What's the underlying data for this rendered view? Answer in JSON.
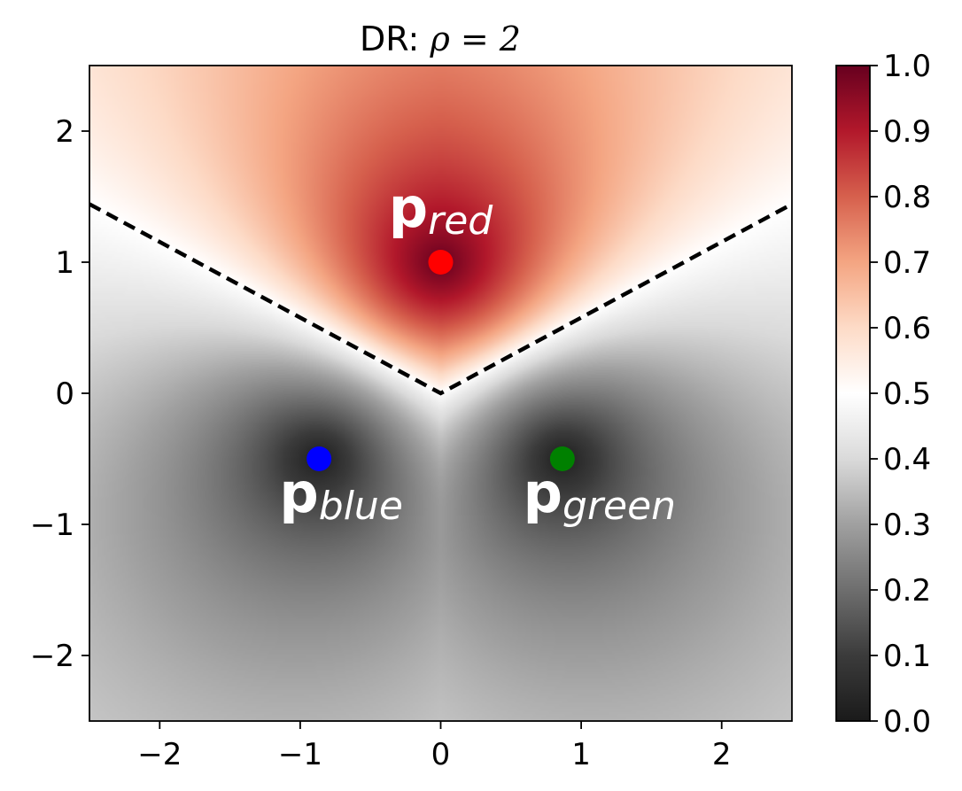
{
  "chart_data": {
    "type": "heatmap",
    "title_prefix": "DR: ",
    "title_math": "ρ = 2",
    "xlim": [
      -2.5,
      2.5
    ],
    "ylim": [
      -2.5,
      2.5
    ],
    "xticks": [
      {
        "value": -2,
        "label": "−2"
      },
      {
        "value": -1,
        "label": "−1"
      },
      {
        "value": 0,
        "label": "0"
      },
      {
        "value": 1,
        "label": "1"
      },
      {
        "value": 2,
        "label": "2"
      }
    ],
    "yticks": [
      {
        "value": -2,
        "label": "−2"
      },
      {
        "value": -1,
        "label": "−1"
      },
      {
        "value": 0,
        "label": "0"
      },
      {
        "value": 1,
        "label": "1"
      },
      {
        "value": 2,
        "label": "2"
      }
    ],
    "grid": false,
    "colormap": "RdGy_r (grey → white → red)",
    "value_range": [
      0.0,
      1.0
    ],
    "colorbar_ticks": [
      {
        "value": 0.0,
        "label": "0.0"
      },
      {
        "value": 0.1,
        "label": "0.1"
      },
      {
        "value": 0.2,
        "label": "0.2"
      },
      {
        "value": 0.3,
        "label": "0.3"
      },
      {
        "value": 0.4,
        "label": "0.4"
      },
      {
        "value": 0.5,
        "label": "0.5"
      },
      {
        "value": 0.6,
        "label": "0.6"
      },
      {
        "value": 0.7,
        "label": "0.7"
      },
      {
        "value": 0.8,
        "label": "0.8"
      },
      {
        "value": 0.9,
        "label": "0.9"
      },
      {
        "value": 1.0,
        "label": "1.0"
      }
    ],
    "points": [
      {
        "name": "red",
        "x": 0.0,
        "y": 1.0,
        "color": "#ff0000",
        "label_main": "p",
        "label_sub": "red"
      },
      {
        "name": "blue",
        "x": -0.866,
        "y": -0.5,
        "color": "#0000ff",
        "label_main": "p",
        "label_sub": "blue"
      },
      {
        "name": "green",
        "x": 0.866,
        "y": -0.5,
        "color": "#008000",
        "label_main": "p",
        "label_sub": "green"
      }
    ],
    "boundary": {
      "style": "dashed",
      "color": "#000000",
      "points": [
        [
          -2.5,
          1.443
        ],
        [
          0.0,
          0.0
        ],
        [
          2.5,
          1.443
        ]
      ]
    }
  }
}
